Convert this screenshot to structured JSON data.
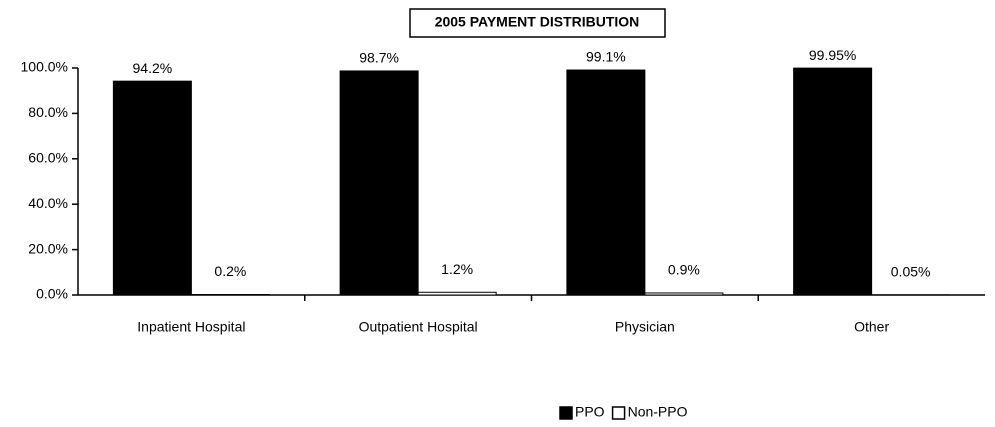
{
  "chart_data": {
    "type": "bar",
    "title": "2005 PAYMENT DISTRIBUTION",
    "categories": [
      "Inpatient Hospital",
      "Outpatient Hospital",
      "Physician",
      "Other"
    ],
    "series": [
      {
        "name": "PPO",
        "color": "#000000",
        "values": [
          94.2,
          98.7,
          99.1,
          99.95
        ],
        "value_labels": [
          "94.2%",
          "98.7%",
          "99.1%",
          "99.95%"
        ]
      },
      {
        "name": "Non-PPO",
        "color": "#ffffff",
        "values": [
          0.2,
          1.2,
          0.9,
          0.05
        ],
        "value_labels": [
          "0.2%",
          "1.2%",
          "0.9%",
          "0.05%"
        ]
      }
    ],
    "ylim": [
      0,
      100
    ],
    "yticks": [
      {
        "value": 0,
        "label": "0.0%"
      },
      {
        "value": 20,
        "label": "20.0%"
      },
      {
        "value": 40,
        "label": "40.0%"
      },
      {
        "value": 60,
        "label": "60.0%"
      },
      {
        "value": 80,
        "label": "80.0%"
      },
      {
        "value": 100,
        "label": "100.0%"
      }
    ],
    "grid": false,
    "legend": "bottom"
  }
}
